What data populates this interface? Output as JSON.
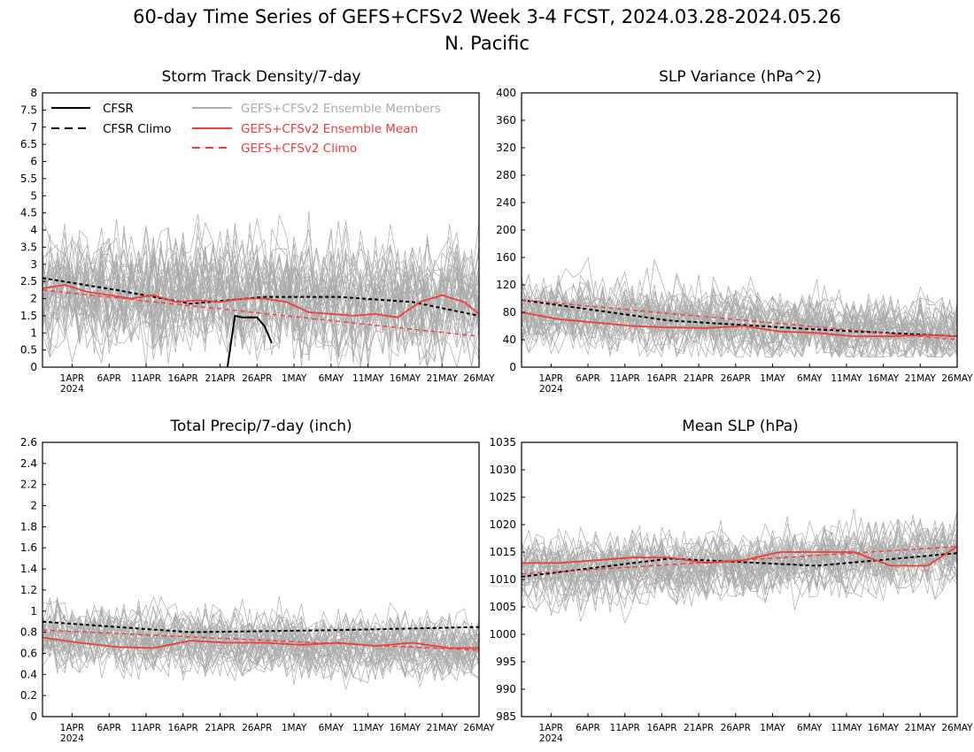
{
  "figure": {
    "title_line1": "60-day Time Series of GEFS+CFSv2 Week 3-4 FCST, 2024.03.28-2024.05.26",
    "title_line2": "N. Pacific"
  },
  "legend": {
    "cfsr": "CFSR",
    "cfsr_climo": "CFSR Climo",
    "members": "GEFS+CFSv2 Ensemble Members",
    "mean": "GEFS+CFSv2 Ensemble Mean",
    "climo": "GEFS+CFSv2 Climo"
  },
  "colors": {
    "members": "#aaaaaa",
    "mean": "#f03c3c",
    "climo": "#f03c3c",
    "cfsr": "#000000",
    "cfsr_climo": "#000000"
  },
  "x_axis": {
    "type": "date",
    "range": [
      "2024-03-28",
      "2024-05-26"
    ],
    "ticks": [
      {
        "date": "2024-04-01",
        "label": "1APR"
      },
      {
        "date": "2024-04-06",
        "label": "6APR"
      },
      {
        "date": "2024-04-11",
        "label": "11APR"
      },
      {
        "date": "2024-04-16",
        "label": "16APR"
      },
      {
        "date": "2024-04-21",
        "label": "21APR"
      },
      {
        "date": "2024-04-26",
        "label": "26APR"
      },
      {
        "date": "2024-05-01",
        "label": "1MAY"
      },
      {
        "date": "2024-05-06",
        "label": "6MAY"
      },
      {
        "date": "2024-05-11",
        "label": "11MAY"
      },
      {
        "date": "2024-05-16",
        "label": "16MAY"
      },
      {
        "date": "2024-05-21",
        "label": "21MAY"
      },
      {
        "date": "2024-05-26",
        "label": "26MAY"
      }
    ],
    "year_label": "2024"
  },
  "chart_data": [
    {
      "type": "line",
      "title": "Storm Track Density/7-day",
      "ylim": [
        0,
        8
      ],
      "yticks": [
        "0",
        "0.5",
        "1",
        "1.5",
        "2",
        "2.5",
        "3",
        "3.5",
        "4",
        "4.5",
        "5",
        "5.5",
        "6",
        "6.5",
        "7",
        "7.5",
        "8"
      ],
      "ensemble_band": {
        "center_start": 2.2,
        "center_end": 1.8,
        "spread": 1.0,
        "min": 0,
        "max": 5
      },
      "series": [
        {
          "name": "CFSR",
          "x": [
            "2024-04-22",
            "2024-04-23",
            "2024-04-24",
            "2024-04-25",
            "2024-04-26",
            "2024-04-27",
            "2024-04-28"
          ],
          "values": [
            0,
            1.5,
            1.45,
            1.45,
            1.45,
            1.2,
            0.7
          ]
        },
        {
          "name": "CFSR Climo",
          "x": [
            "2024-03-28",
            "2024-04-07",
            "2024-04-17",
            "2024-04-27",
            "2024-05-07",
            "2024-05-17",
            "2024-05-26"
          ],
          "values": [
            2.6,
            2.25,
            1.85,
            2.05,
            2.05,
            1.9,
            1.5
          ]
        },
        {
          "name": "GEFS+CFSv2 Ensemble Mean",
          "x": [
            "2024-03-28",
            "2024-03-31",
            "2024-04-03",
            "2024-04-06",
            "2024-04-09",
            "2024-04-12",
            "2024-04-15",
            "2024-04-18",
            "2024-04-21",
            "2024-04-24",
            "2024-04-27",
            "2024-04-30",
            "2024-05-03",
            "2024-05-06",
            "2024-05-09",
            "2024-05-12",
            "2024-05-15",
            "2024-05-18",
            "2024-05-21",
            "2024-05-24",
            "2024-05-26"
          ],
          "values": [
            2.3,
            2.4,
            2.2,
            2.1,
            2.0,
            2.1,
            1.9,
            1.95,
            1.9,
            2.0,
            2.0,
            1.9,
            1.6,
            1.55,
            1.5,
            1.55,
            1.45,
            1.9,
            2.1,
            1.9,
            1.55
          ]
        },
        {
          "name": "GEFS+CFSv2 Climo",
          "x": [
            "2024-03-28",
            "2024-05-26"
          ],
          "values": [
            2.25,
            0.9
          ]
        }
      ]
    },
    {
      "type": "line",
      "title": "SLP Variance (hPa^2)",
      "ylim": [
        0,
        400
      ],
      "yticks": [
        "0",
        "40",
        "80",
        "120",
        "160",
        "200",
        "240",
        "280",
        "320",
        "360",
        "400"
      ],
      "ensemble_band": {
        "center_start": 80,
        "center_end": 50,
        "spread": 28,
        "min": 15,
        "max": 175
      },
      "series": [
        {
          "name": "CFSR Climo",
          "x": [
            "2024-03-28",
            "2024-04-17",
            "2024-05-07",
            "2024-05-26"
          ],
          "values": [
            98,
            68,
            55,
            45
          ]
        },
        {
          "name": "GEFS+CFSv2 Ensemble Mean",
          "x": [
            "2024-03-28",
            "2024-04-02",
            "2024-04-07",
            "2024-04-12",
            "2024-04-17",
            "2024-04-22",
            "2024-04-27",
            "2024-05-02",
            "2024-05-07",
            "2024-05-12",
            "2024-05-17",
            "2024-05-22",
            "2024-05-26"
          ],
          "values": [
            80,
            70,
            65,
            60,
            58,
            57,
            60,
            52,
            50,
            45,
            45,
            47,
            45
          ]
        },
        {
          "name": "GEFS+CFSv2 Climo",
          "x": [
            "2024-03-28",
            "2024-05-26"
          ],
          "values": [
            98,
            40
          ]
        }
      ]
    },
    {
      "type": "line",
      "title": "Total Precip/7-day (inch)",
      "ylim": [
        0,
        2.6
      ],
      "yticks": [
        "0",
        "0.2",
        "0.4",
        "0.6",
        "0.8",
        "1",
        "1.2",
        "1.4",
        "1.6",
        "1.8",
        "2",
        "2.2",
        "2.4",
        "2.6"
      ],
      "ensemble_band": {
        "center_start": 0.75,
        "center_end": 0.65,
        "spread": 0.17,
        "min": 0.25,
        "max": 1.2
      },
      "series": [
        {
          "name": "CFSR Climo",
          "x": [
            "2024-03-28",
            "2024-04-17",
            "2024-05-07",
            "2024-05-26"
          ],
          "values": [
            0.9,
            0.8,
            0.82,
            0.85
          ]
        },
        {
          "name": "GEFS+CFSv2 Ensemble Mean",
          "x": [
            "2024-03-28",
            "2024-04-02",
            "2024-04-07",
            "2024-04-12",
            "2024-04-17",
            "2024-04-22",
            "2024-04-27",
            "2024-05-02",
            "2024-05-07",
            "2024-05-12",
            "2024-05-17",
            "2024-05-22",
            "2024-05-26"
          ],
          "values": [
            0.75,
            0.7,
            0.66,
            0.65,
            0.72,
            0.7,
            0.7,
            0.68,
            0.7,
            0.67,
            0.7,
            0.65,
            0.65
          ]
        },
        {
          "name": "GEFS+CFSv2 Climo",
          "x": [
            "2024-03-28",
            "2024-05-26"
          ],
          "values": [
            0.82,
            0.63
          ]
        }
      ]
    },
    {
      "type": "line",
      "title": "Mean SLP (hPa)",
      "ylim": [
        985,
        1035
      ],
      "yticks": [
        "985",
        "990",
        "995",
        "1000",
        "1005",
        "1010",
        "1015",
        "1020",
        "1025",
        "1030",
        "1035"
      ],
      "ensemble_band": {
        "center_start": 1011.5,
        "center_end": 1015,
        "spread": 3.5,
        "min": 1002,
        "max": 1027
      },
      "series": [
        {
          "name": "CFSR Climo",
          "x": [
            "2024-03-28",
            "2024-04-17",
            "2024-05-07",
            "2024-05-26"
          ],
          "values": [
            1010.5,
            1013.8,
            1012.5,
            1014.8
          ]
        },
        {
          "name": "GEFS+CFSv2 Ensemble Mean",
          "x": [
            "2024-03-28",
            "2024-04-02",
            "2024-04-07",
            "2024-04-12",
            "2024-04-17",
            "2024-04-22",
            "2024-04-27",
            "2024-05-02",
            "2024-05-07",
            "2024-05-12",
            "2024-05-17",
            "2024-05-22",
            "2024-05-26"
          ],
          "values": [
            1013,
            1013,
            1013.5,
            1014,
            1014,
            1013,
            1013.5,
            1015,
            1015,
            1015,
            1012.5,
            1012.5,
            1016
          ]
        },
        {
          "name": "GEFS+CFSv2 Climo",
          "x": [
            "2024-03-28",
            "2024-05-26"
          ],
          "values": [
            1011,
            1016
          ]
        }
      ]
    }
  ]
}
